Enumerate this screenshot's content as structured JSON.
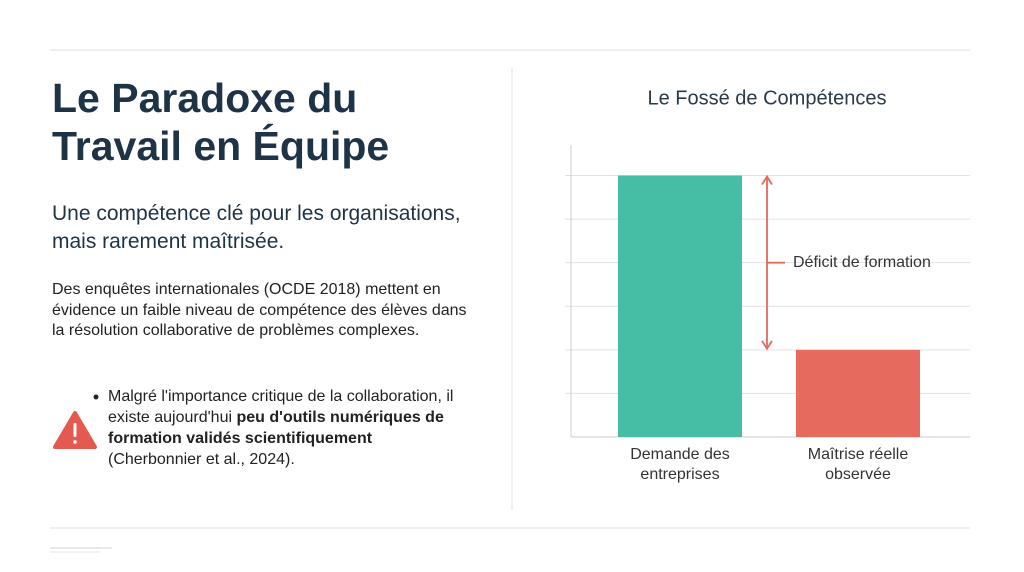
{
  "header": {
    "title": "Le Paradoxe du Travail en Équipe",
    "subtitle": "Une compétence clé pour les organisations, mais rarement maîtrisée."
  },
  "body": {
    "paragraph": "Des enquêtes internationales (OCDE 2018) mettent en évidence un faible niveau de compétence des élèves dans la résolution collaborative de problèmes complexes.",
    "bullet": [
      "Malgré l'importance critique de la collaboration, il existe aujourd'hui ",
      "peu d'outils numériques de formation validés scientifiquement",
      " (Cherbonnier et al., 2024)."
    ]
  },
  "chart_data": {
    "type": "bar",
    "title": "Le Fossé de Compétences",
    "categories": [
      "Demande des entreprises",
      "Maîtrise réelle observée"
    ],
    "values": [
      6,
      2
    ],
    "colors": [
      "#44bfa5",
      "#e76a5e"
    ],
    "ylim": [
      0,
      6.7
    ],
    "yticks": [
      1,
      2,
      3,
      4,
      5,
      6
    ],
    "grid": true,
    "annotation": "Déficit de formation",
    "annotation_color": "#e06a5e"
  }
}
